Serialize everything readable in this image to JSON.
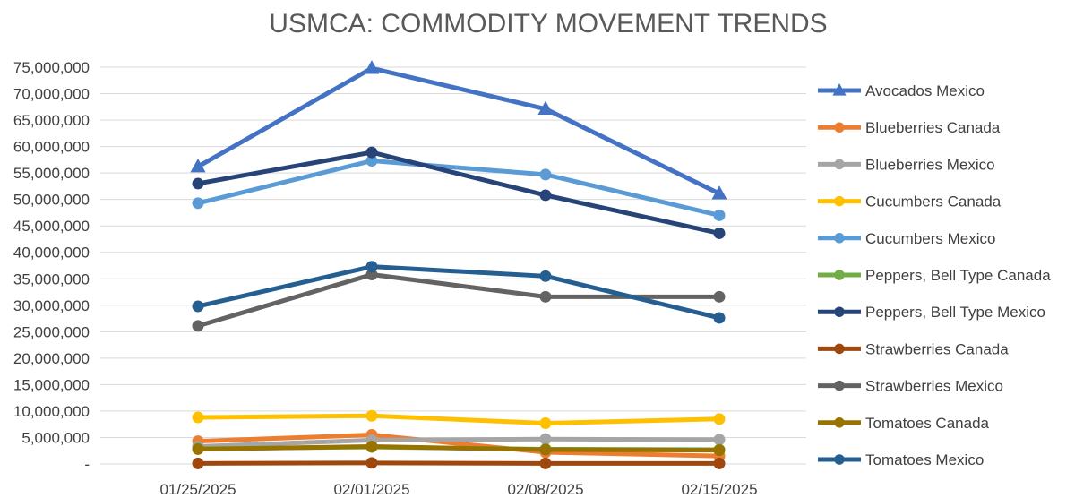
{
  "chart_data": {
    "type": "line",
    "title": "USMCA: COMMODITY MOVEMENT TRENDS",
    "xlabel": "",
    "ylabel": "",
    "categories": [
      "01/25/2025",
      "02/01/2025",
      "02/08/2025",
      "02/15/2025"
    ],
    "y_ticks": [
      "-",
      "5,000,000",
      "10,000,000",
      "15,000,000",
      "20,000,000",
      "25,000,000",
      "30,000,000",
      "35,000,000",
      "40,000,000",
      "45,000,000",
      "50,000,000",
      "55,000,000",
      "60,000,000",
      "65,000,000",
      "70,000,000",
      "75,000,000"
    ],
    "ylim": [
      0,
      75000000
    ],
    "grid": true,
    "legend_position": "right",
    "series": [
      {
        "name": "Avocados Mexico",
        "color": "#4472c4",
        "marker": "triangle",
        "values": [
          56200000,
          74800000,
          67100000,
          51100000
        ]
      },
      {
        "name": "Blueberries Canada",
        "color": "#ed7d31",
        "marker": "circle",
        "values": [
          4300000,
          5500000,
          2200000,
          1500000
        ]
      },
      {
        "name": "Blueberries Mexico",
        "color": "#a5a5a5",
        "marker": "circle",
        "values": [
          3300000,
          4500000,
          4700000,
          4600000
        ]
      },
      {
        "name": "Cucumbers Canada",
        "color": "#ffc000",
        "marker": "circle",
        "values": [
          8800000,
          9100000,
          7700000,
          8500000
        ]
      },
      {
        "name": "Cucumbers Mexico",
        "color": "#5b9bd5",
        "marker": "circle",
        "values": [
          49300000,
          57300000,
          54700000,
          47000000
        ]
      },
      {
        "name": "Peppers, Bell Type Canada",
        "color": "#70ad47",
        "marker": "circle",
        "values": [
          2900000,
          3200000,
          2800000,
          2700000
        ]
      },
      {
        "name": "Peppers, Bell Type Mexico",
        "color": "#264478",
        "marker": "circle",
        "values": [
          53000000,
          58900000,
          50800000,
          43600000
        ]
      },
      {
        "name": "Strawberries Canada",
        "color": "#9e480e",
        "marker": "circle",
        "values": [
          100000,
          200000,
          100000,
          100000
        ]
      },
      {
        "name": "Strawberries Mexico",
        "color": "#636363",
        "marker": "circle",
        "values": [
          26100000,
          35800000,
          31600000,
          31600000
        ]
      },
      {
        "name": "Tomatoes Canada",
        "color": "#997300",
        "marker": "circle",
        "values": [
          2800000,
          3300000,
          2700000,
          2600000
        ]
      },
      {
        "name": "Tomatoes Mexico",
        "color": "#255e91",
        "marker": "circle",
        "values": [
          29800000,
          37300000,
          35500000,
          27600000
        ]
      }
    ]
  }
}
